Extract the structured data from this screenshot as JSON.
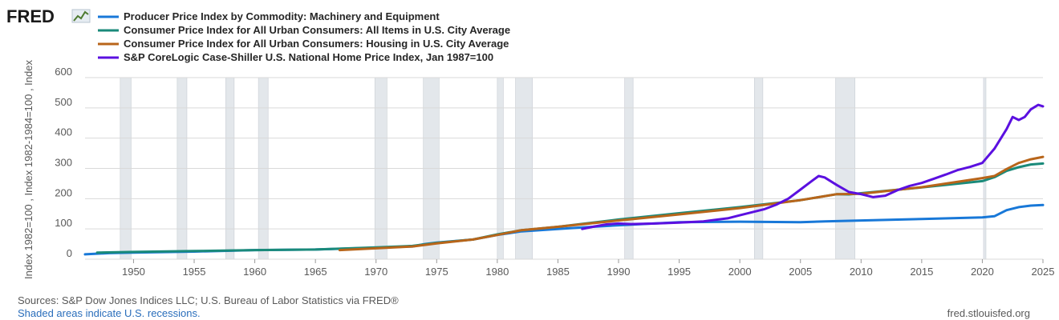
{
  "logo": {
    "text": "FRED"
  },
  "chart_data": {
    "type": "line",
    "title": "",
    "ylabel": "Index 1982=100 , Index 1982-1984=100 , Index",
    "xlabel": "",
    "xlim": [
      1946,
      2025
    ],
    "ylim": [
      0,
      600
    ],
    "x_ticks": [
      "1950",
      "1955",
      "1960",
      "1965",
      "1970",
      "1975",
      "1980",
      "1985",
      "1990",
      "1995",
      "2000",
      "2005",
      "2010",
      "2015",
      "2020",
      "2025"
    ],
    "y_ticks": [
      "0",
      "100",
      "200",
      "300",
      "400",
      "500",
      "600"
    ],
    "grid": "horizontal",
    "legend_position": "top-left",
    "recessions": [
      [
        1948.9,
        1949.8
      ],
      [
        1953.6,
        1954.4
      ],
      [
        1957.6,
        1958.3
      ],
      [
        1960.3,
        1961.1
      ],
      [
        1969.9,
        1970.9
      ],
      [
        1973.9,
        1975.2
      ],
      [
        1980.0,
        1980.5
      ],
      [
        1981.5,
        1982.9
      ],
      [
        1990.5,
        1991.2
      ],
      [
        2001.2,
        2001.9
      ],
      [
        2007.9,
        2009.5
      ],
      [
        2020.1,
        2020.3
      ]
    ],
    "series": [
      {
        "name": "Producer Price Index by Commodity: Machinery and Equipment",
        "color": "#1878d8",
        "points": [
          [
            1946,
            16
          ],
          [
            1948,
            20
          ],
          [
            1950,
            22
          ],
          [
            1955,
            25
          ],
          [
            1960,
            30
          ],
          [
            1965,
            32
          ],
          [
            1970,
            38
          ],
          [
            1973,
            42
          ],
          [
            1974,
            50
          ],
          [
            1975,
            55
          ],
          [
            1978,
            65
          ],
          [
            1980,
            80
          ],
          [
            1982,
            92
          ],
          [
            1985,
            100
          ],
          [
            1987,
            105
          ],
          [
            1990,
            112
          ],
          [
            1995,
            122
          ],
          [
            2000,
            124
          ],
          [
            2005,
            122
          ],
          [
            2007,
            125
          ],
          [
            2010,
            128
          ],
          [
            2015,
            133
          ],
          [
            2020,
            138
          ],
          [
            2021,
            142
          ],
          [
            2022,
            162
          ],
          [
            2023,
            172
          ],
          [
            2024,
            177
          ],
          [
            2025,
            179
          ]
        ]
      },
      {
        "name": "Consumer Price Index for All Urban Consumers: All Items in U.S. City Average",
        "color": "#1a8a7a",
        "points": [
          [
            1947,
            22
          ],
          [
            1950,
            24
          ],
          [
            1955,
            27
          ],
          [
            1960,
            30
          ],
          [
            1965,
            32
          ],
          [
            1970,
            39
          ],
          [
            1973,
            44
          ],
          [
            1975,
            54
          ],
          [
            1978,
            65
          ],
          [
            1980,
            82
          ],
          [
            1982,
            96
          ],
          [
            1985,
            107
          ],
          [
            1990,
            131
          ],
          [
            1995,
            152
          ],
          [
            2000,
            172
          ],
          [
            2005,
            195
          ],
          [
            2008,
            215
          ],
          [
            2009,
            214
          ],
          [
            2010,
            218
          ],
          [
            2015,
            237
          ],
          [
            2020,
            258
          ],
          [
            2021,
            271
          ],
          [
            2022,
            292
          ],
          [
            2023,
            304
          ],
          [
            2024,
            313
          ],
          [
            2025,
            316
          ]
        ]
      },
      {
        "name": "Consumer Price Index for All Urban Consumers: Housing in U.S. City Average",
        "color": "#b8651a",
        "points": [
          [
            1967,
            30
          ],
          [
            1970,
            36
          ],
          [
            1973,
            42
          ],
          [
            1975,
            52
          ],
          [
            1978,
            65
          ],
          [
            1980,
            80
          ],
          [
            1982,
            96
          ],
          [
            1985,
            107
          ],
          [
            1990,
            128
          ],
          [
            1995,
            148
          ],
          [
            2000,
            169
          ],
          [
            2005,
            195
          ],
          [
            2008,
            215
          ],
          [
            2010,
            216
          ],
          [
            2015,
            238
          ],
          [
            2020,
            268
          ],
          [
            2021,
            275
          ],
          [
            2022,
            298
          ],
          [
            2023,
            318
          ],
          [
            2024,
            330
          ],
          [
            2025,
            338
          ]
        ]
      },
      {
        "name": "S&P CoreLogic Case-Shiller U.S. National Home Price Index, Jan 1987=100",
        "color": "#5b10e0",
        "points": [
          [
            1987,
            100
          ],
          [
            1988,
            108
          ],
          [
            1989,
            115
          ],
          [
            1990,
            118
          ],
          [
            1991,
            116
          ],
          [
            1993,
            118
          ],
          [
            1995,
            121
          ],
          [
            1997,
            125
          ],
          [
            1999,
            135
          ],
          [
            2000,
            145
          ],
          [
            2002,
            165
          ],
          [
            2003,
            180
          ],
          [
            2004,
            200
          ],
          [
            2005,
            230
          ],
          [
            2006,
            260
          ],
          [
            2006.5,
            275
          ],
          [
            2007,
            270
          ],
          [
            2008,
            245
          ],
          [
            2009,
            222
          ],
          [
            2010,
            215
          ],
          [
            2011,
            205
          ],
          [
            2012,
            210
          ],
          [
            2013,
            228
          ],
          [
            2014,
            242
          ],
          [
            2015,
            252
          ],
          [
            2016,
            266
          ],
          [
            2017,
            280
          ],
          [
            2018,
            295
          ],
          [
            2019,
            305
          ],
          [
            2020,
            318
          ],
          [
            2021,
            365
          ],
          [
            2022,
            430
          ],
          [
            2022.5,
            470
          ],
          [
            2023,
            460
          ],
          [
            2023.5,
            470
          ],
          [
            2024,
            495
          ],
          [
            2024.6,
            510
          ],
          [
            2025,
            505
          ]
        ]
      }
    ]
  },
  "footer": {
    "sources": "Sources: S&P Dow Jones Indices LLC; U.S. Bureau of Labor Statistics via FRED®",
    "recession_note": "Shaded areas indicate U.S. recessions.",
    "site": "fred.stlouisfed.org"
  }
}
